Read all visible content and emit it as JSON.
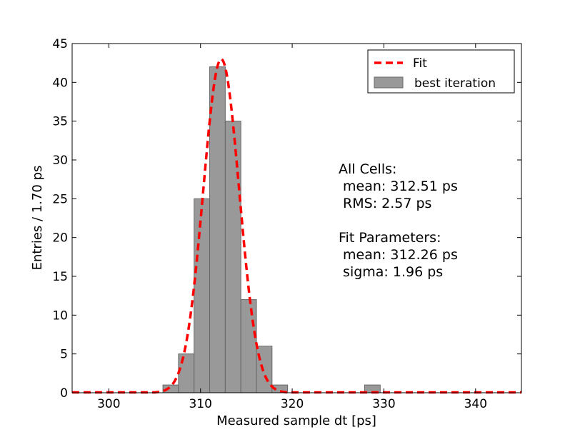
{
  "chart_data": {
    "type": "bar",
    "xlabel": "Measured sample dt [ps]",
    "ylabel": "Entries / 1.70 ps",
    "xlim": [
      296,
      345
    ],
    "ylim": [
      0,
      45
    ],
    "xticks": [
      300,
      310,
      320,
      330,
      340
    ],
    "yticks": [
      0,
      5,
      10,
      15,
      20,
      25,
      30,
      35,
      40,
      45
    ],
    "grid": false,
    "legend_position": "top-right",
    "histogram": {
      "name": "best iteration",
      "color": "#999999",
      "bin_width": 1.7,
      "bins": [
        {
          "left": 305.9,
          "value": 1
        },
        {
          "left": 307.6,
          "value": 5
        },
        {
          "left": 309.3,
          "value": 25
        },
        {
          "left": 311.0,
          "value": 42
        },
        {
          "left": 312.7,
          "value": 35
        },
        {
          "left": 314.4,
          "value": 12
        },
        {
          "left": 316.1,
          "value": 6
        },
        {
          "left": 317.8,
          "value": 1
        },
        {
          "left": 327.9,
          "value": 1
        }
      ]
    },
    "fit": {
      "name": "Fit",
      "color": "#ff0000",
      "style": "dashed",
      "mean": 312.26,
      "sigma": 1.96,
      "amplitude": 43
    },
    "annotations": [
      "All Cells:",
      " mean: 312.51 ps",
      " RMS: 2.57 ps",
      "",
      "Fit Parameters:",
      " mean: 312.26 ps",
      " sigma: 1.96 ps"
    ]
  }
}
